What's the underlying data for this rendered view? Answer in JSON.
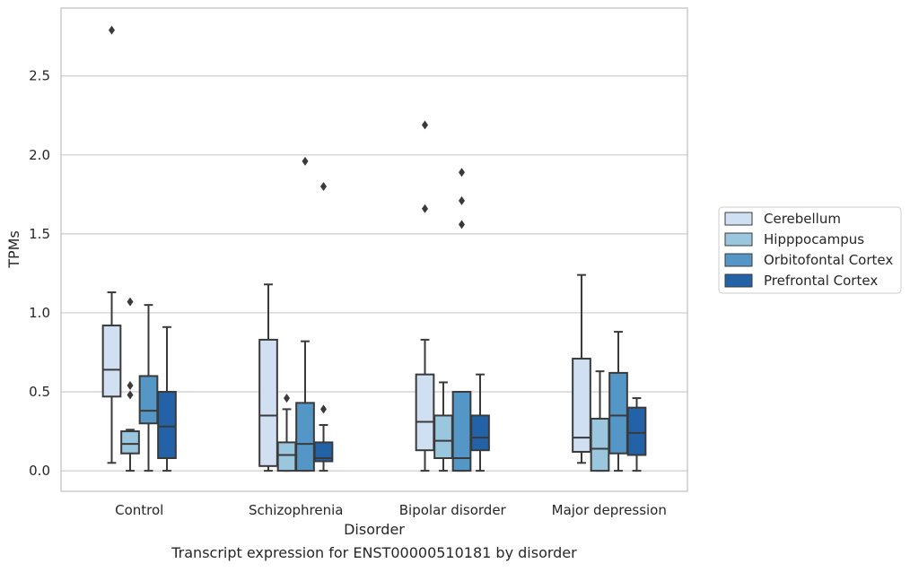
{
  "chart_data": {
    "type": "box",
    "title": "",
    "caption": "Transcript expression for ENST00000510181 by disorder",
    "xlabel": "Disorder",
    "ylabel": "TPMs",
    "ylim": [
      -0.13,
      2.93
    ],
    "yticks": [
      0.0,
      0.5,
      1.0,
      1.5,
      2.0,
      2.5
    ],
    "ytick_labels": [
      "0.0",
      "0.5",
      "1.0",
      "1.5",
      "2.0",
      "2.5"
    ],
    "grid": "horizontal",
    "legend_position": "right",
    "categories": [
      "Control",
      "Schizophrenia",
      "Bipolar disorder",
      "Major depression"
    ],
    "series": [
      {
        "name": "Cerebellum",
        "color": "#d0e0f2",
        "boxes": [
          {
            "min": 0.05,
            "q1": 0.47,
            "median": 0.64,
            "q3": 0.92,
            "max": 1.13,
            "outliers": [
              2.79
            ]
          },
          {
            "min": 0.0,
            "q1": 0.03,
            "median": 0.35,
            "q3": 0.83,
            "max": 1.18,
            "outliers": []
          },
          {
            "min": 0.0,
            "q1": 0.13,
            "median": 0.31,
            "q3": 0.61,
            "max": 0.83,
            "outliers": [
              1.66,
              2.19
            ]
          },
          {
            "min": 0.05,
            "q1": 0.12,
            "median": 0.21,
            "q3": 0.71,
            "max": 1.24,
            "outliers": []
          }
        ]
      },
      {
        "name": "Hipppocampus",
        "color": "#9ac6de",
        "boxes": [
          {
            "min": 0.0,
            "q1": 0.11,
            "median": 0.17,
            "q3": 0.25,
            "max": 0.26,
            "outliers": [
              0.48,
              0.54,
              1.07
            ]
          },
          {
            "min": 0.0,
            "q1": 0.0,
            "median": 0.1,
            "q3": 0.18,
            "max": 0.39,
            "outliers": [
              0.46
            ]
          },
          {
            "min": 0.0,
            "q1": 0.08,
            "median": 0.19,
            "q3": 0.35,
            "max": 0.56,
            "outliers": []
          },
          {
            "min": 0.0,
            "q1": 0.0,
            "median": 0.14,
            "q3": 0.33,
            "max": 0.63,
            "outliers": []
          }
        ]
      },
      {
        "name": "Orbitofontal Cortex",
        "color": "#5497c6",
        "boxes": [
          {
            "min": 0.0,
            "q1": 0.3,
            "median": 0.38,
            "q3": 0.6,
            "max": 1.05,
            "outliers": []
          },
          {
            "min": 0.0,
            "q1": 0.0,
            "median": 0.17,
            "q3": 0.43,
            "max": 0.82,
            "outliers": [
              1.96
            ]
          },
          {
            "min": 0.0,
            "q1": 0.0,
            "median": 0.08,
            "q3": 0.5,
            "max": 0.5,
            "outliers": [
              1.56,
              1.71,
              1.89
            ]
          },
          {
            "min": 0.0,
            "q1": 0.11,
            "median": 0.35,
            "q3": 0.62,
            "max": 0.88,
            "outliers": []
          }
        ]
      },
      {
        "name": "Prefrontal Cortex",
        "color": "#2362a6",
        "boxes": [
          {
            "min": 0.0,
            "q1": 0.08,
            "median": 0.28,
            "q3": 0.5,
            "max": 0.91,
            "outliers": []
          },
          {
            "min": 0.0,
            "q1": 0.06,
            "median": 0.08,
            "q3": 0.18,
            "max": 0.29,
            "outliers": [
              0.39,
              1.8
            ]
          },
          {
            "min": 0.0,
            "q1": 0.13,
            "median": 0.21,
            "q3": 0.35,
            "max": 0.61,
            "outliers": []
          },
          {
            "min": 0.0,
            "q1": 0.1,
            "median": 0.24,
            "q3": 0.4,
            "max": 0.46,
            "outliers": []
          }
        ]
      }
    ]
  }
}
